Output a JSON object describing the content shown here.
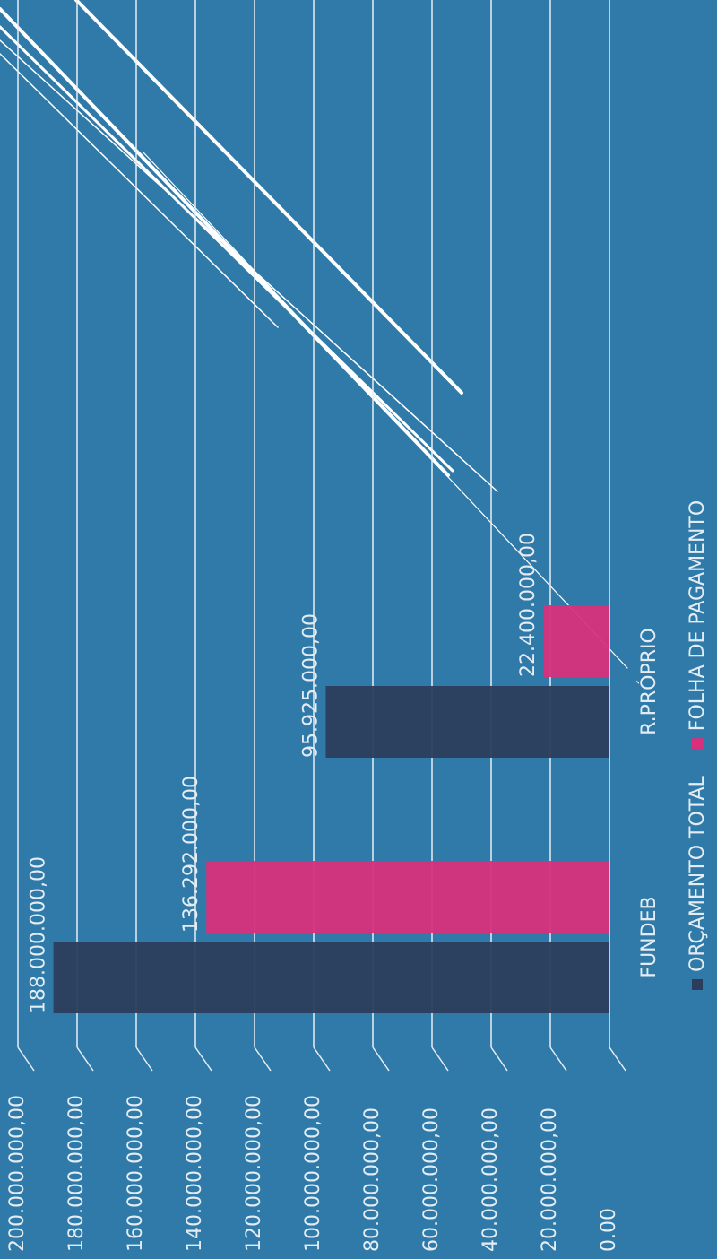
{
  "chart_data": {
    "type": "bar",
    "categories": [
      "FUNDEB",
      "R.PRÓPRIO"
    ],
    "series": [
      {
        "name": "ORÇAMENTO TOTAL",
        "color": "#2c3d5c",
        "values": [
          188000000,
          95925000
        ],
        "value_labels": [
          "188.000.000,00",
          "95.925.000,00"
        ]
      },
      {
        "name": "FOLHA DE PAGAMENTO",
        "color": "#d8307b",
        "values": [
          136292000,
          22400000
        ],
        "value_labels": [
          "136.292.000,00",
          "22.400.000,00"
        ]
      }
    ],
    "ylim": [
      0,
      200000000
    ],
    "yticks": [
      {
        "value": 0,
        "label": "0.00"
      },
      {
        "value": 20000000,
        "label": "20.000.000,00"
      },
      {
        "value": 40000000,
        "label": "40.000.000,00"
      },
      {
        "value": 60000000,
        "label": "60.000.000,00"
      },
      {
        "value": 80000000,
        "label": "80.000.000,00"
      },
      {
        "value": 100000000,
        "label": "100.000.000,00"
      },
      {
        "value": 120000000,
        "label": "120.000.000,00"
      },
      {
        "value": 140000000,
        "label": "140.000.000,00"
      },
      {
        "value": 160000000,
        "label": "160.000.000,00"
      },
      {
        "value": 180000000,
        "label": "180.000.000,00"
      },
      {
        "value": 200000000,
        "label": "200.000.000,00"
      }
    ],
    "grid": true
  }
}
